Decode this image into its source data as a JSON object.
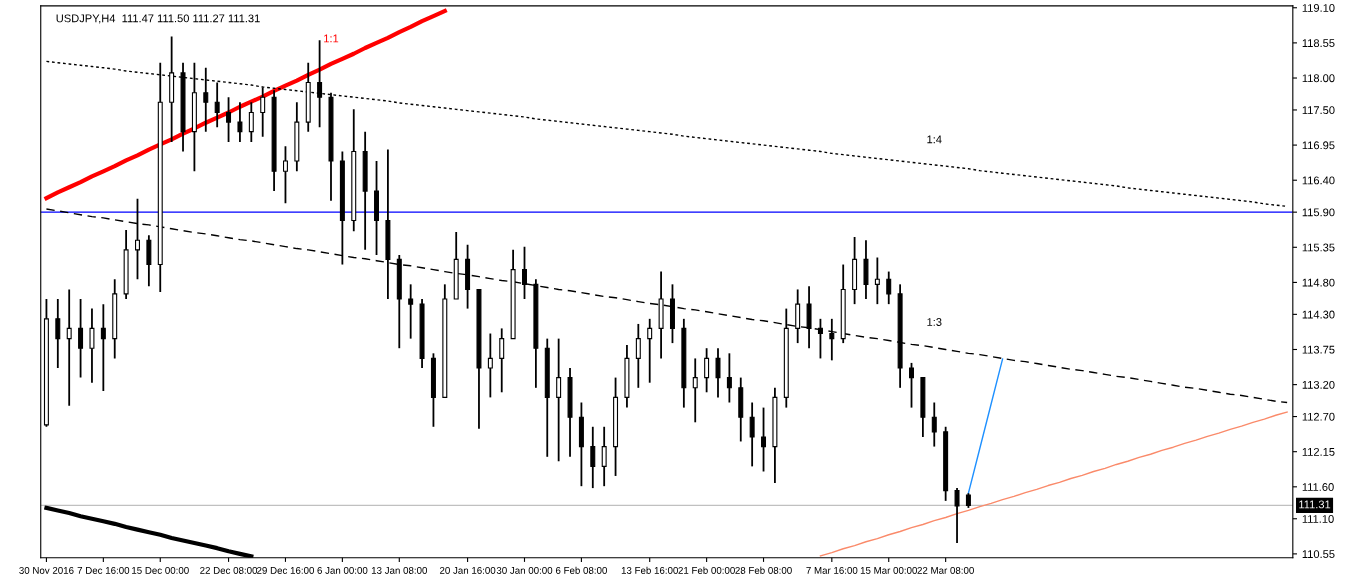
{
  "chart_data": {
    "type": "candlestick",
    "title": "USDJPY,H4  111.47 111.50 111.27 111.31",
    "categories": [
      "30 Nov 2016",
      null,
      null,
      null,
      null,
      "7 Dec 16:00",
      null,
      null,
      null,
      null,
      "15 Dec 00:00",
      null,
      null,
      null,
      null,
      null,
      "22 Dec 08:00",
      null,
      null,
      null,
      null,
      "29 Dec 16:00",
      null,
      null,
      null,
      null,
      "6 Jan 00:00",
      null,
      null,
      null,
      null,
      "13 Jan 08:00",
      null,
      null,
      null,
      null,
      null,
      "20 Jan 16:00",
      null,
      null,
      null,
      null,
      "30 Jan 00:00",
      null,
      null,
      null,
      null,
      "6 Feb 08:00",
      null,
      null,
      null,
      null,
      null,
      "13 Feb 16:00",
      null,
      null,
      null,
      null,
      "21 Feb 00:00",
      null,
      null,
      null,
      null,
      "28 Feb 08:00",
      null,
      null,
      null,
      null,
      null,
      "7 Mar 16:00",
      null,
      null,
      null,
      null,
      "15 Mar 00:00",
      null,
      null,
      null,
      null,
      "22 Mar 08:00",
      null,
      null,
      null,
      null,
      null,
      null,
      null,
      null,
      null,
      null,
      null,
      null,
      null,
      null,
      null,
      null,
      null,
      null,
      null,
      null,
      null,
      null,
      null,
      null,
      null,
      null,
      null,
      null,
      null,
      null
    ],
    "ylim": [
      110.49,
      119.13
    ],
    "yticks": [
      {
        "value": 110.55,
        "label": "110.55"
      },
      {
        "value": 111.1,
        "label": "111.10"
      },
      {
        "value": 111.6,
        "label": "111.60"
      },
      {
        "value": 112.15,
        "label": "112.15"
      },
      {
        "value": 112.7,
        "label": "112.70"
      },
      {
        "value": 113.2,
        "label": "113.20"
      },
      {
        "value": 113.75,
        "label": "113.75"
      },
      {
        "value": 114.3,
        "label": "114.30"
      },
      {
        "value": 114.8,
        "label": "114.80"
      },
      {
        "value": 115.35,
        "label": "115.35"
      },
      {
        "value": 115.9,
        "label": "115.90"
      },
      {
        "value": 116.4,
        "label": "116.40"
      },
      {
        "value": 116.95,
        "label": "116.95"
      },
      {
        "value": 117.5,
        "label": "117.50"
      },
      {
        "value": 118.0,
        "label": "118.00"
      },
      {
        "value": 118.55,
        "label": "118.55"
      },
      {
        "value": 119.1,
        "label": "119.10"
      }
    ],
    "grid": false,
    "ref_lines": [
      {
        "axis": "y",
        "value": 115.9,
        "color": "#0000ff"
      },
      {
        "axis": "y",
        "value": 111.31,
        "label": "111.31",
        "color": "#c0c0c0"
      }
    ],
    "series": [
      {
        "color": "#000000",
        "ohlc": [
          [
            112.57,
            114.54,
            112.54,
            114.23
          ],
          [
            114.23,
            114.54,
            113.46,
            113.92
          ],
          [
            113.92,
            114.69,
            112.87,
            114.08
          ],
          [
            114.08,
            114.54,
            113.31,
            113.77
          ],
          [
            113.77,
            114.39,
            113.23,
            114.08
          ],
          [
            114.08,
            114.46,
            113.1,
            113.92
          ],
          [
            113.92,
            114.85,
            113.61,
            114.62
          ],
          [
            114.62,
            115.62,
            114.54,
            115.31
          ],
          [
            115.31,
            116.11,
            114.85,
            115.46
          ],
          [
            115.46,
            115.54,
            114.74,
            115.08
          ],
          [
            115.08,
            118.24,
            114.65,
            117.62
          ],
          [
            117.62,
            118.65,
            117.0,
            118.08
          ],
          [
            118.08,
            118.24,
            116.85,
            117.16
          ],
          [
            117.16,
            118.24,
            116.54,
            117.77
          ],
          [
            117.77,
            118.16,
            117.16,
            117.62
          ],
          [
            117.62,
            117.93,
            117.23,
            117.46
          ],
          [
            117.46,
            117.7,
            117.0,
            117.31
          ],
          [
            117.31,
            117.62,
            117.0,
            117.16
          ],
          [
            117.16,
            117.62,
            117.0,
            117.46
          ],
          [
            117.46,
            117.85,
            117.08,
            117.7
          ],
          [
            117.7,
            117.81,
            116.23,
            116.54
          ],
          [
            116.54,
            116.93,
            116.04,
            116.7
          ],
          [
            116.7,
            117.62,
            116.54,
            117.31
          ],
          [
            117.31,
            118.24,
            117.16,
            117.93
          ],
          [
            117.93,
            118.59,
            117.23,
            117.7
          ],
          [
            117.7,
            117.77,
            116.08,
            116.7
          ],
          [
            116.7,
            116.85,
            115.08,
            115.77
          ],
          [
            115.77,
            117.51,
            115.6,
            116.85
          ],
          [
            116.85,
            117.16,
            115.31,
            116.23
          ],
          [
            116.23,
            116.7,
            115.23,
            115.77
          ],
          [
            115.77,
            116.88,
            114.54,
            115.16
          ],
          [
            115.16,
            115.23,
            113.77,
            114.54
          ],
          [
            114.54,
            114.77,
            113.92,
            114.46
          ],
          [
            114.46,
            114.54,
            113.46,
            113.61
          ],
          [
            113.61,
            113.69,
            112.54,
            113.0
          ],
          [
            113.0,
            114.77,
            113.0,
            114.54
          ],
          [
            114.54,
            115.59,
            114.54,
            115.16
          ],
          [
            115.16,
            115.39,
            114.39,
            114.69
          ],
          [
            114.69,
            114.69,
            112.51,
            113.46
          ],
          [
            113.46,
            114.0,
            113.0,
            113.61
          ],
          [
            113.61,
            114.08,
            113.08,
            113.92
          ],
          [
            113.92,
            115.31,
            113.92,
            115.0
          ],
          [
            115.0,
            115.36,
            114.54,
            114.77
          ],
          [
            114.77,
            114.85,
            113.15,
            113.77
          ],
          [
            113.77,
            113.92,
            112.07,
            113.0
          ],
          [
            113.0,
            113.92,
            112.0,
            113.31
          ],
          [
            113.31,
            113.46,
            112.07,
            112.69
          ],
          [
            112.69,
            112.92,
            111.61,
            112.23
          ],
          [
            112.23,
            112.54,
            111.58,
            111.92
          ],
          [
            111.92,
            112.54,
            111.61,
            112.23
          ],
          [
            112.23,
            113.31,
            111.77,
            113.0
          ],
          [
            113.0,
            113.82,
            112.84,
            113.61
          ],
          [
            113.61,
            114.15,
            113.15,
            113.92
          ],
          [
            113.92,
            114.23,
            113.23,
            114.08
          ],
          [
            114.08,
            114.97,
            113.61,
            114.54
          ],
          [
            114.54,
            114.77,
            113.85,
            114.08
          ],
          [
            114.08,
            114.23,
            112.84,
            113.15
          ],
          [
            113.15,
            113.61,
            112.61,
            113.31
          ],
          [
            113.31,
            113.77,
            113.08,
            113.61
          ],
          [
            113.61,
            113.77,
            113.0,
            113.31
          ],
          [
            113.31,
            113.69,
            112.92,
            113.15
          ],
          [
            113.15,
            113.31,
            112.31,
            112.69
          ],
          [
            112.69,
            112.92,
            111.92,
            112.38
          ],
          [
            112.38,
            112.84,
            111.84,
            112.23
          ],
          [
            112.23,
            113.15,
            111.66,
            113.0
          ],
          [
            113.0,
            114.39,
            112.84,
            114.08
          ],
          [
            114.08,
            114.69,
            113.85,
            114.46
          ],
          [
            114.46,
            114.74,
            113.77,
            114.08
          ],
          [
            114.08,
            114.23,
            113.61,
            114.0
          ],
          [
            114.0,
            114.23,
            113.58,
            113.92
          ],
          [
            113.92,
            115.08,
            113.85,
            114.69
          ],
          [
            114.69,
            115.51,
            114.46,
            115.16
          ],
          [
            115.16,
            115.46,
            114.54,
            114.77
          ],
          [
            114.77,
            115.19,
            114.46,
            114.85
          ],
          [
            114.85,
            114.97,
            114.46,
            114.62
          ],
          [
            114.62,
            114.77,
            113.15,
            113.46
          ],
          [
            113.46,
            113.54,
            112.84,
            113.31
          ],
          [
            113.31,
            113.31,
            112.38,
            112.69
          ],
          [
            112.69,
            112.92,
            112.23,
            112.46
          ],
          [
            112.46,
            112.54,
            111.38,
            111.54
          ],
          [
            111.54,
            111.58,
            110.72,
            111.3
          ],
          [
            111.47,
            111.5,
            111.27,
            111.31
          ],
          null,
          null,
          null,
          null,
          null,
          null,
          null,
          null,
          null,
          null,
          null,
          null,
          null,
          null,
          null,
          null,
          null,
          null,
          null,
          null,
          null,
          null,
          null,
          null,
          null,
          null,
          null,
          null
        ]
      },
      {
        "type": "line",
        "name": "1:1",
        "color": "#ff0000",
        "line_style": "solid",
        "values": [
          116.12,
          116.21,
          116.29,
          116.37,
          116.46,
          116.54,
          116.62,
          116.71,
          116.79,
          116.88,
          116.96,
          117.04,
          117.13,
          117.21,
          117.3,
          117.38,
          117.46,
          117.55,
          117.63,
          117.71,
          117.8,
          117.88,
          117.96,
          118.05,
          118.13,
          118.22,
          118.3,
          118.38,
          118.47,
          118.55,
          118.63,
          118.72,
          118.8,
          118.89,
          118.97,
          119.05,
          null,
          null,
          null,
          null,
          null,
          null,
          null,
          null,
          null,
          null,
          null,
          null,
          null,
          null,
          null,
          null,
          null,
          null,
          null,
          null,
          null,
          null,
          null,
          null,
          null,
          null,
          null,
          null,
          null,
          null,
          null,
          null,
          null,
          null,
          null,
          null,
          null,
          null,
          null,
          null,
          null,
          null,
          null,
          null,
          null,
          null,
          null,
          null,
          null,
          null,
          null,
          null,
          null,
          null,
          null,
          null,
          null,
          null,
          null,
          null,
          null,
          null,
          null,
          null,
          null,
          null,
          null,
          null,
          null,
          null,
          null,
          null,
          null,
          null
        ]
      },
      {
        "type": "line",
        "name": "1:4",
        "color": "#000000",
        "line_style": "dotted",
        "values": [
          118.26,
          118.24,
          118.22,
          118.2,
          118.18,
          118.16,
          118.14,
          118.11,
          118.09,
          118.07,
          118.05,
          118.03,
          118.01,
          117.99,
          117.97,
          117.95,
          117.93,
          117.91,
          117.89,
          117.86,
          117.84,
          117.82,
          117.8,
          117.78,
          117.76,
          117.74,
          117.72,
          117.7,
          117.68,
          117.66,
          117.64,
          117.61,
          117.59,
          117.57,
          117.55,
          117.53,
          117.51,
          117.49,
          117.47,
          117.45,
          117.43,
          117.41,
          117.39,
          117.36,
          117.34,
          117.32,
          117.3,
          117.28,
          117.26,
          117.24,
          117.22,
          117.2,
          117.18,
          117.16,
          117.14,
          117.12,
          117.09,
          117.07,
          117.05,
          117.03,
          117.01,
          116.99,
          116.97,
          116.95,
          116.93,
          116.91,
          116.89,
          116.87,
          116.85,
          116.82,
          116.8,
          116.78,
          116.76,
          116.74,
          116.72,
          116.7,
          116.68,
          116.66,
          116.64,
          116.62,
          116.6,
          116.58,
          116.55,
          116.53,
          116.51,
          116.49,
          116.47,
          116.45,
          116.43,
          116.41,
          116.39,
          116.37,
          116.35,
          116.33,
          116.31,
          116.28,
          116.26,
          116.24,
          116.22,
          116.2,
          116.18,
          116.16,
          116.14,
          116.12,
          116.1,
          116.08,
          116.06,
          116.03,
          116.01,
          115.99
        ]
      },
      {
        "type": "line",
        "name": "1:3",
        "color": "#000000",
        "line_style": "dashed",
        "values": [
          115.95,
          115.92,
          115.89,
          115.86,
          115.83,
          115.81,
          115.78,
          115.75,
          115.72,
          115.7,
          115.67,
          115.64,
          115.61,
          115.58,
          115.56,
          115.53,
          115.5,
          115.47,
          115.45,
          115.42,
          115.39,
          115.36,
          115.33,
          115.31,
          115.28,
          115.25,
          115.22,
          115.19,
          115.17,
          115.14,
          115.11,
          115.08,
          115.06,
          115.03,
          115.0,
          114.97,
          114.94,
          114.92,
          114.89,
          114.86,
          114.83,
          114.81,
          114.78,
          114.75,
          114.72,
          114.69,
          114.67,
          114.64,
          114.61,
          114.58,
          114.56,
          114.53,
          114.5,
          114.47,
          114.45,
          114.42,
          114.39,
          114.37,
          114.34,
          114.31,
          114.28,
          114.25,
          114.22,
          114.2,
          114.17,
          114.14,
          114.11,
          114.09,
          114.06,
          114.03,
          114.0,
          113.97,
          113.94,
          113.92,
          113.89,
          113.86,
          113.83,
          113.81,
          113.78,
          113.75,
          113.72,
          113.69,
          113.67,
          113.64,
          113.61,
          113.58,
          113.56,
          113.53,
          113.5,
          113.47,
          113.44,
          113.42,
          113.39,
          113.36,
          113.33,
          113.31,
          113.28,
          113.25,
          113.22,
          113.19,
          113.16,
          113.14,
          113.11,
          113.08,
          113.05,
          113.03,
          113.0,
          112.97,
          112.94,
          112.92
        ]
      },
      {
        "type": "line",
        "color": "#000000",
        "line_style": "solid",
        "values": [
          111.27,
          111.23,
          111.19,
          111.14,
          111.1,
          111.06,
          111.02,
          110.97,
          110.93,
          110.89,
          110.85,
          110.8,
          110.76,
          110.72,
          110.68,
          110.64,
          110.59,
          110.55,
          110.51,
          null,
          null,
          null,
          null,
          null,
          null,
          null,
          null,
          null,
          null,
          null,
          null,
          null,
          null,
          null,
          null,
          null,
          null,
          null,
          null,
          null,
          null,
          null,
          null,
          null,
          null,
          null,
          null,
          null,
          null,
          null,
          null,
          null,
          null,
          null,
          null,
          null,
          null,
          null,
          null,
          null,
          null,
          null,
          null,
          null,
          null,
          null,
          null,
          null,
          null,
          null,
          null,
          null,
          null,
          null,
          null,
          null,
          null,
          null,
          null,
          null,
          null,
          null,
          null,
          null,
          null,
          null,
          null,
          null,
          null,
          null,
          null,
          null,
          null,
          null,
          null,
          null,
          null,
          null,
          null,
          null,
          null,
          null,
          null,
          null,
          null,
          null,
          null,
          null,
          null,
          null
        ]
      },
      {
        "type": "line",
        "color": "#fa8a6a",
        "line_style": "solid",
        "values": [
          null,
          null,
          null,
          null,
          null,
          null,
          null,
          null,
          null,
          null,
          null,
          null,
          null,
          null,
          null,
          null,
          null,
          null,
          null,
          null,
          null,
          null,
          null,
          null,
          null,
          null,
          null,
          null,
          null,
          null,
          null,
          null,
          null,
          null,
          null,
          null,
          null,
          null,
          null,
          null,
          null,
          null,
          null,
          null,
          null,
          null,
          null,
          null,
          null,
          null,
          null,
          null,
          null,
          null,
          null,
          null,
          null,
          null,
          null,
          null,
          null,
          null,
          null,
          null,
          null,
          null,
          null,
          null,
          110.52,
          110.57,
          110.63,
          110.68,
          110.74,
          110.79,
          110.85,
          110.9,
          110.96,
          111.01,
          111.07,
          111.12,
          111.18,
          111.23,
          111.29,
          111.34,
          111.4,
          111.45,
          111.51,
          111.56,
          111.62,
          111.67,
          111.73,
          111.78,
          111.84,
          111.89,
          111.95,
          112.0,
          112.06,
          112.11,
          112.17,
          112.22,
          112.28,
          112.33,
          112.39,
          112.44,
          112.5,
          112.55,
          112.61,
          112.66,
          112.72,
          112.77
        ]
      },
      {
        "type": "line",
        "color": "#1e90ff",
        "line_style": "solid",
        "values": [
          null,
          null,
          null,
          null,
          null,
          null,
          null,
          null,
          null,
          null,
          null,
          null,
          null,
          null,
          null,
          null,
          null,
          null,
          null,
          null,
          null,
          null,
          null,
          null,
          null,
          null,
          null,
          null,
          null,
          null,
          null,
          null,
          null,
          null,
          null,
          null,
          null,
          null,
          null,
          null,
          null,
          null,
          null,
          null,
          null,
          null,
          null,
          null,
          null,
          null,
          null,
          null,
          null,
          null,
          null,
          null,
          null,
          null,
          null,
          null,
          null,
          null,
          null,
          null,
          null,
          null,
          null,
          null,
          null,
          null,
          null,
          null,
          null,
          null,
          null,
          null,
          null,
          null,
          null,
          null,
          null,
          111.5,
          112.2,
          112.9,
          113.6,
          null,
          null,
          null,
          null,
          null,
          null,
          null,
          null,
          null,
          null,
          null,
          null,
          null,
          null,
          null,
          null,
          null,
          null,
          null,
          null,
          null,
          null,
          null,
          null,
          null
        ]
      }
    ]
  }
}
